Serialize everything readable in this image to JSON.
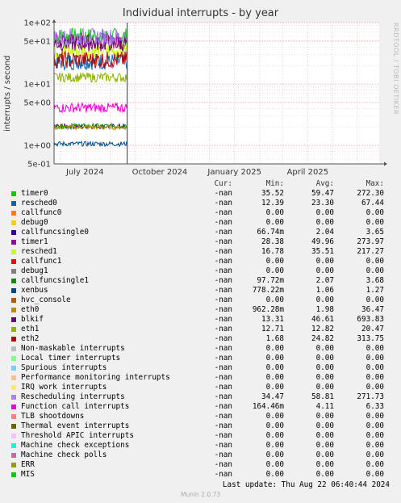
{
  "header": {
    "title": "Individual interrupts - by year",
    "side_note": "RRDTOOL / TOBI OETIKER",
    "ylabel": "interrupts / second"
  },
  "chart_data": {
    "type": "line",
    "title": "Individual interrupts - by year",
    "ylabel": "interrupts / second",
    "yscale": "log",
    "ylim": [
      0.5,
      100
    ],
    "ytick_labels": [
      "1e+02",
      "5e+01",
      "1e+01",
      "5e+00",
      "1e+00",
      "5e-01"
    ],
    "ytick_values": [
      100,
      50,
      10,
      5,
      1,
      0.5
    ],
    "xtick_labels": [
      "July 2024",
      "October 2024",
      "January 2025",
      "April 2025"
    ],
    "x_range": [
      "2024-05-24",
      "2025-06-28"
    ],
    "data_end": "2024-08-22",
    "grid": true,
    "series": [
      {
        "name": "timer0",
        "color": "#00cc00",
        "level": 59.47
      },
      {
        "name": "resched0",
        "color": "#0066b3",
        "level": 23.3
      },
      {
        "name": "callfunc0",
        "color": "#ff8000",
        "level": 0.0
      },
      {
        "name": "debug0",
        "color": "#ffcc00",
        "level": 0.0
      },
      {
        "name": "callfuncsingle0",
        "color": "#330099",
        "level": 2.04
      },
      {
        "name": "timer1",
        "color": "#990099",
        "level": 49.96
      },
      {
        "name": "resched1",
        "color": "#ccff00",
        "level": 35.51
      },
      {
        "name": "callfunc1",
        "color": "#ff0000",
        "level": 0.0
      },
      {
        "name": "debug1",
        "color": "#808080",
        "level": 0.0
      },
      {
        "name": "callfuncsingle1",
        "color": "#008f00",
        "level": 2.07
      },
      {
        "name": "xenbus",
        "color": "#00487d",
        "level": 1.06
      },
      {
        "name": "hvc_console",
        "color": "#b35a00",
        "level": 0.0
      },
      {
        "name": "eth0",
        "color": "#b38f00",
        "level": 1.98
      },
      {
        "name": "blkif",
        "color": "#6b006b",
        "level": 46.61
      },
      {
        "name": "eth1",
        "color": "#8fb300",
        "level": 12.82
      },
      {
        "name": "eth2",
        "color": "#b30000",
        "level": 24.82
      },
      {
        "name": "Function call interrupts",
        "color": "#ee00cc",
        "level": 4.11
      },
      {
        "name": "Rescheduling interrupts",
        "color": "#a177ee",
        "level": 58.81
      }
    ]
  },
  "legend": {
    "headers": {
      "cur": "Cur:",
      "min": "Min:",
      "avg": "Avg:",
      "max": "Max:"
    },
    "rows": [
      {
        "name": "timer0",
        "color": "#00cc00",
        "cur": "-nan",
        "min": "35.52",
        "avg": "59.47",
        "max": "272.30"
      },
      {
        "name": "resched0",
        "color": "#0066b3",
        "cur": "-nan",
        "min": "12.39",
        "avg": "23.30",
        "max": "67.44"
      },
      {
        "name": "callfunc0",
        "color": "#ff8000",
        "cur": "-nan",
        "min": "0.00",
        "avg": "0.00",
        "max": "0.00"
      },
      {
        "name": "debug0",
        "color": "#ffcc00",
        "cur": "-nan",
        "min": "0.00",
        "avg": "0.00",
        "max": "0.00"
      },
      {
        "name": "callfuncsingle0",
        "color": "#330099",
        "cur": "-nan",
        "min": "66.74m",
        "avg": "2.04",
        "max": "3.65"
      },
      {
        "name": "timer1",
        "color": "#990099",
        "cur": "-nan",
        "min": "28.38",
        "avg": "49.96",
        "max": "273.97"
      },
      {
        "name": "resched1",
        "color": "#ccff00",
        "cur": "-nan",
        "min": "16.78",
        "avg": "35.51",
        "max": "217.27"
      },
      {
        "name": "callfunc1",
        "color": "#ff0000",
        "cur": "-nan",
        "min": "0.00",
        "avg": "0.00",
        "max": "0.00"
      },
      {
        "name": "debug1",
        "color": "#808080",
        "cur": "-nan",
        "min": "0.00",
        "avg": "0.00",
        "max": "0.00"
      },
      {
        "name": "callfuncsingle1",
        "color": "#008f00",
        "cur": "-nan",
        "min": "97.72m",
        "avg": "2.07",
        "max": "3.68"
      },
      {
        "name": "xenbus",
        "color": "#00487d",
        "cur": "-nan",
        "min": "778.22m",
        "avg": "1.06",
        "max": "1.27"
      },
      {
        "name": "hvc_console",
        "color": "#b35a00",
        "cur": "-nan",
        "min": "0.00",
        "avg": "0.00",
        "max": "0.00"
      },
      {
        "name": "eth0",
        "color": "#b38f00",
        "cur": "-nan",
        "min": "962.28m",
        "avg": "1.98",
        "max": "36.47"
      },
      {
        "name": "blkif",
        "color": "#6b006b",
        "cur": "-nan",
        "min": "13.31",
        "avg": "46.61",
        "max": "693.83"
      },
      {
        "name": "eth1",
        "color": "#8fb300",
        "cur": "-nan",
        "min": "12.71",
        "avg": "12.82",
        "max": "20.47"
      },
      {
        "name": "eth2",
        "color": "#b30000",
        "cur": "-nan",
        "min": "1.68",
        "avg": "24.82",
        "max": "313.75"
      },
      {
        "name": "Non-maskable interrupts",
        "color": "#bebebe",
        "cur": "-nan",
        "min": "0.00",
        "avg": "0.00",
        "max": "0.00"
      },
      {
        "name": "Local timer interrupts",
        "color": "#80ff80",
        "cur": "-nan",
        "min": "0.00",
        "avg": "0.00",
        "max": "0.00"
      },
      {
        "name": "Spurious interrupts",
        "color": "#80c9ff",
        "cur": "-nan",
        "min": "0.00",
        "avg": "0.00",
        "max": "0.00"
      },
      {
        "name": "Performance monitoring interrupts",
        "color": "#ffc080",
        "cur": "-nan",
        "min": "0.00",
        "avg": "0.00",
        "max": "0.00"
      },
      {
        "name": "IRQ work interrupts",
        "color": "#ffe680",
        "cur": "-nan",
        "min": "0.00",
        "avg": "0.00",
        "max": "0.00"
      },
      {
        "name": "Rescheduling interrupts",
        "color": "#aa80ff",
        "cur": "-nan",
        "min": "34.47",
        "avg": "58.81",
        "max": "271.73"
      },
      {
        "name": "Function call interrupts",
        "color": "#ee00cc",
        "cur": "-nan",
        "min": "164.46m",
        "avg": "4.11",
        "max": "6.33"
      },
      {
        "name": "TLB shootdowns",
        "color": "#ff8080",
        "cur": "-nan",
        "min": "0.00",
        "avg": "0.00",
        "max": "0.00"
      },
      {
        "name": "Thermal event interrupts",
        "color": "#666600",
        "cur": "-nan",
        "min": "0.00",
        "avg": "0.00",
        "max": "0.00"
      },
      {
        "name": "Threshold APIC interrupts",
        "color": "#ffbfff",
        "cur": "-nan",
        "min": "0.00",
        "avg": "0.00",
        "max": "0.00"
      },
      {
        "name": "Machine check exceptions",
        "color": "#00ffcc",
        "cur": "-nan",
        "min": "0.00",
        "avg": "0.00",
        "max": "0.00"
      },
      {
        "name": "Machine check polls",
        "color": "#cc6699",
        "cur": "-nan",
        "min": "0.00",
        "avg": "0.00",
        "max": "0.00"
      },
      {
        "name": "ERR",
        "color": "#999900",
        "cur": "-nan",
        "min": "0.00",
        "avg": "0.00",
        "max": "0.00"
      },
      {
        "name": "MIS",
        "color": "#00cc00",
        "cur": "-nan",
        "min": "0.00",
        "avg": "0.00",
        "max": "0.00"
      }
    ]
  },
  "last_update": "Last update: Thu Aug 22 06:40:44 2024",
  "footer": "Munin 2.0.73"
}
